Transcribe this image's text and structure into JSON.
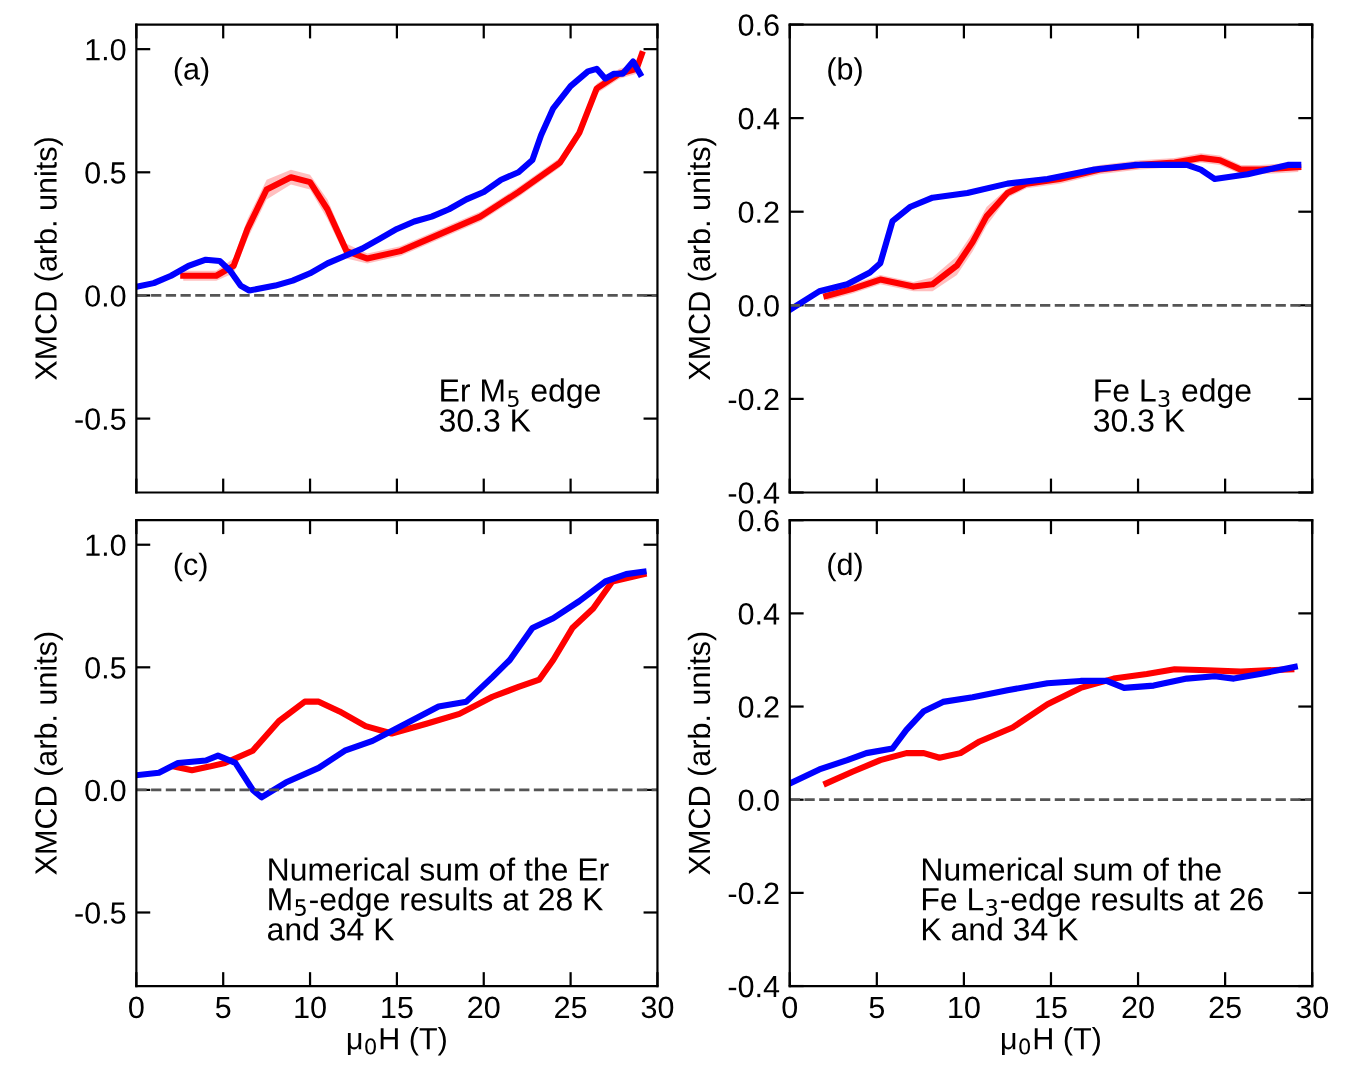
{
  "chart_data": [
    {
      "type": "line",
      "ylabel": "XMCD (arb. units)",
      "annotations": [
        "(a)",
        "Er M$_{5}$ edge\n30.3 K"
      ],
      "xlim": [
        0,
        30
      ],
      "xticks": [
        0,
        5,
        10,
        15,
        20,
        25,
        30
      ],
      "ylim": [
        -0.8,
        1.1
      ],
      "yticks": [
        {
          "value": -0.5,
          "label": "-0.5"
        },
        {
          "value": 0,
          "label": "0.0"
        },
        {
          "value": 0.5,
          "label": "0.5"
        },
        {
          "value": 1,
          "label": "1.0"
        }
      ],
      "tick_labels": "y",
      "grid": false,
      "legend": false,
      "line_style": "solid",
      "marker": "none",
      "ref_lines": [
        {
          "axis": "y",
          "value": 0,
          "color": "#555555",
          "line_style": "dashed"
        }
      ],
      "series": [
        {
          "color": "#ff0000",
          "x": [
            2.7,
            4.6,
            5.6,
            6.4,
            7.5,
            8.9,
            10,
            11,
            12.1,
            13.3,
            15.2,
            17.5,
            19.8,
            22,
            24.4,
            25.5,
            26.5,
            27.8,
            28.8,
            29.1
          ],
          "values": [
            0.08,
            0.08,
            0.12,
            0.27,
            0.43,
            0.48,
            0.46,
            0.35,
            0.18,
            0.15,
            0.18,
            0.25,
            0.32,
            0.42,
            0.54,
            0.66,
            0.84,
            0.9,
            0.92,
            0.98
          ],
          "lower": [
            0.06,
            0.06,
            0.09,
            0.23,
            0.39,
            0.45,
            0.43,
            0.31,
            0.15,
            0.13,
            0.16,
            0.23,
            0.3,
            0.4,
            0.52,
            0.64,
            0.82,
            0.88,
            0.9,
            0.96
          ],
          "upper": [
            0.1,
            0.1,
            0.15,
            0.31,
            0.47,
            0.51,
            0.49,
            0.39,
            0.21,
            0.17,
            0.2,
            0.27,
            0.34,
            0.44,
            0.56,
            0.68,
            0.86,
            0.92,
            0.94,
            1.0
          ]
        },
        {
          "color": "#0000ff",
          "x": [
            0,
            1,
            2,
            3,
            4,
            4.8,
            5.4,
            6,
            6.5,
            8,
            9,
            10,
            11,
            12,
            13,
            14,
            15,
            16,
            17,
            18,
            19,
            20,
            21,
            22,
            22.8,
            23.3,
            24,
            25,
            26,
            26.5,
            27,
            27.5,
            28,
            28.6,
            29
          ],
          "values": [
            0.035,
            0.05,
            0.08,
            0.12,
            0.145,
            0.14,
            0.1,
            0.04,
            0.02,
            0.04,
            0.06,
            0.09,
            0.13,
            0.16,
            0.19,
            0.23,
            0.27,
            0.3,
            0.32,
            0.35,
            0.39,
            0.42,
            0.47,
            0.5,
            0.55,
            0.65,
            0.76,
            0.85,
            0.91,
            0.92,
            0.88,
            0.9,
            0.9,
            0.95,
            0.9
          ]
        }
      ]
    },
    {
      "type": "line",
      "ylabel": "XMCD (arb. units)",
      "annotations": [
        "(b)",
        "Fe L$_{3}$ edge\n30.3 K"
      ],
      "xlim": [
        0,
        30
      ],
      "xticks": [
        0,
        5,
        10,
        15,
        20,
        25,
        30
      ],
      "ylim": [
        -0.4,
        0.6
      ],
      "yticks": [
        {
          "value": -0.4,
          "label": "-0.4"
        },
        {
          "value": -0.2,
          "label": "-0.2"
        },
        {
          "value": 0,
          "label": "0.0"
        },
        {
          "value": 0.2,
          "label": "0.2"
        },
        {
          "value": 0.4,
          "label": "0.4"
        },
        {
          "value": 0.6,
          "label": "0.6"
        }
      ],
      "tick_labels": "y",
      "grid": false,
      "legend": false,
      "line_style": "solid",
      "marker": "none",
      "ref_lines": [
        {
          "axis": "y",
          "value": 0,
          "color": "#555555",
          "line_style": "dashed"
        }
      ],
      "series": [
        {
          "color": "#ff0000",
          "x": [
            2.1,
            3.6,
            5.2,
            7.1,
            8.2,
            9.6,
            10.5,
            11.3,
            12.5,
            13.6,
            15.5,
            17.8,
            20.1,
            22.1,
            23.6,
            24.7,
            25.9,
            27,
            29.2
          ],
          "values": [
            0.02,
            0.035,
            0.055,
            0.04,
            0.045,
            0.085,
            0.135,
            0.19,
            0.24,
            0.26,
            0.27,
            0.29,
            0.3,
            0.305,
            0.315,
            0.31,
            0.29,
            0.29,
            0.295
          ],
          "lower": [
            0.01,
            0.025,
            0.045,
            0.03,
            0.03,
            0.065,
            0.115,
            0.17,
            0.23,
            0.25,
            0.26,
            0.28,
            0.29,
            0.295,
            0.305,
            0.3,
            0.28,
            0.28,
            0.285
          ],
          "upper": [
            0.03,
            0.045,
            0.065,
            0.05,
            0.06,
            0.105,
            0.155,
            0.21,
            0.25,
            0.27,
            0.28,
            0.3,
            0.31,
            0.315,
            0.325,
            0.32,
            0.3,
            0.3,
            0.305
          ]
        },
        {
          "color": "#0000ff",
          "x": [
            0,
            1.7,
            3.3,
            4.6,
            5.2,
            5.9,
            6.9,
            8.2,
            10.2,
            12.5,
            14.8,
            17.5,
            19.8,
            22.8,
            23.6,
            24.4,
            26.3,
            28.6,
            29.2
          ],
          "values": [
            -0.01,
            0.03,
            0.045,
            0.07,
            0.09,
            0.18,
            0.21,
            0.23,
            0.24,
            0.26,
            0.27,
            0.29,
            0.3,
            0.3,
            0.29,
            0.27,
            0.28,
            0.3,
            0.3
          ]
        }
      ]
    },
    {
      "type": "line",
      "xlabel": "μ$_{0}$H (T)",
      "ylabel": "XMCD (arb. units)",
      "annotations": [
        "(c)",
        "Numerical sum of the Er\nM$_{5}$-edge results at 28 K\nand 34 K"
      ],
      "xlim": [
        0,
        30
      ],
      "xticks": [
        0,
        5,
        10,
        15,
        20,
        25,
        30
      ],
      "ylim": [
        -0.8,
        1.1
      ],
      "yticks": [
        {
          "value": -0.5,
          "label": "-0.5"
        },
        {
          "value": 0,
          "label": "0.0"
        },
        {
          "value": 0.5,
          "label": "0.5"
        },
        {
          "value": 1,
          "label": "1.0"
        }
      ],
      "grid": false,
      "legend": false,
      "line_style": "solid",
      "marker": "none",
      "ref_lines": [
        {
          "axis": "y",
          "value": 0,
          "color": "#555555",
          "line_style": "dashed"
        }
      ],
      "series": [
        {
          "color": "#ff0000",
          "x": [
            2.2,
            3.2,
            4.2,
            5.1,
            6.7,
            8.2,
            9.7,
            10.5,
            11.7,
            13.2,
            14.7,
            16.7,
            18.6,
            20.5,
            22,
            23.2,
            24,
            25.1,
            26.3,
            27.4,
            29.2
          ],
          "values": [
            0.095,
            0.08,
            0.095,
            0.11,
            0.16,
            0.28,
            0.36,
            0.36,
            0.32,
            0.26,
            0.23,
            0.27,
            0.31,
            0.38,
            0.42,
            0.45,
            0.53,
            0.66,
            0.74,
            0.85,
            0.88
          ]
        },
        {
          "color": "#0000ff",
          "x": [
            0,
            1.3,
            2.4,
            4,
            4.7,
            5.7,
            6.7,
            7.2,
            8.6,
            10.5,
            12,
            13.6,
            15.5,
            17.4,
            19,
            20.5,
            21.5,
            22.8,
            24,
            25.5,
            27,
            28.2,
            29.2
          ],
          "values": [
            0.06,
            0.07,
            0.11,
            0.12,
            0.14,
            0.11,
            0.0,
            -0.03,
            0.03,
            0.09,
            0.16,
            0.2,
            0.27,
            0.34,
            0.36,
            0.46,
            0.53,
            0.66,
            0.7,
            0.77,
            0.85,
            0.88,
            0.89
          ]
        }
      ]
    },
    {
      "type": "line",
      "xlabel": "μ$_{0}$H (T)",
      "ylabel": "XMCD (arb. units)",
      "annotations": [
        "(d)",
        "Numerical sum of the\nFe L$_{3}$-edge results at 26\nK and 34 K"
      ],
      "xlim": [
        0,
        30
      ],
      "xticks": [
        0,
        5,
        10,
        15,
        20,
        25,
        30
      ],
      "ylim": [
        -0.4,
        0.6
      ],
      "yticks": [
        {
          "value": -0.4,
          "label": "-0.4"
        },
        {
          "value": -0.2,
          "label": "-0.2"
        },
        {
          "value": 0,
          "label": "0.0"
        },
        {
          "value": 0.2,
          "label": "0.2"
        },
        {
          "value": 0.4,
          "label": "0.4"
        },
        {
          "value": 0.6,
          "label": "0.6"
        }
      ],
      "grid": false,
      "legend": false,
      "line_style": "solid",
      "marker": "none",
      "ref_lines": [
        {
          "axis": "y",
          "value": 0,
          "color": "#555555",
          "line_style": "dashed"
        }
      ],
      "series": [
        {
          "color": "#ff0000",
          "x": [
            2.1,
            3.6,
            5.2,
            6.7,
            7.7,
            8.6,
            9.8,
            10.9,
            12.8,
            14.8,
            16.7,
            18.6,
            20.5,
            22.1,
            24,
            25.9,
            28.8
          ],
          "values": [
            0.035,
            0.06,
            0.085,
            0.1,
            0.1,
            0.09,
            0.1,
            0.125,
            0.155,
            0.205,
            0.24,
            0.26,
            0.27,
            0.28,
            0.278,
            0.275,
            0.28
          ]
        },
        {
          "color": "#0000ff",
          "x": [
            0,
            1.7,
            3.3,
            4.4,
            5.9,
            6.7,
            7.7,
            8.8,
            10.5,
            12.5,
            14.8,
            16.7,
            18.2,
            19.2,
            20.9,
            22.8,
            24.4,
            25.5,
            27,
            29
          ],
          "values": [
            0.035,
            0.065,
            0.085,
            0.1,
            0.11,
            0.15,
            0.19,
            0.21,
            0.22,
            0.235,
            0.25,
            0.255,
            0.255,
            0.24,
            0.245,
            0.26,
            0.265,
            0.26,
            0.27,
            0.285
          ]
        }
      ]
    }
  ]
}
